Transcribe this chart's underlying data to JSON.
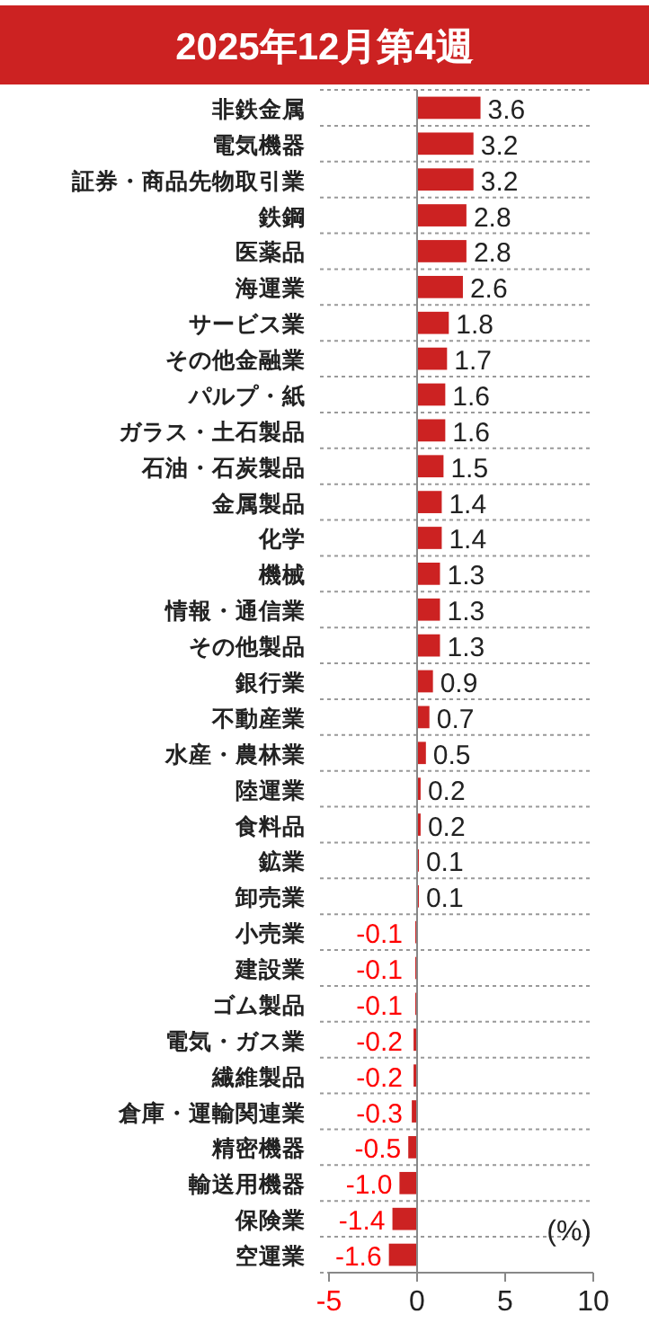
{
  "chart_data": {
    "type": "bar",
    "orientation": "horizontal",
    "title": "2025年12月第4週",
    "xlabel": "(%)",
    "categories": [
      "非鉄金属",
      "電気機器",
      "証券・商品先物取引業",
      "鉄鋼",
      "医薬品",
      "海運業",
      "サービス業",
      "その他金融業",
      "パルプ・紙",
      "ガラス・土石製品",
      "石油・石炭製品",
      "金属製品",
      "化学",
      "機械",
      "情報・通信業",
      "その他製品",
      "銀行業",
      "不動産業",
      "水産・農林業",
      "陸運業",
      "食料品",
      "鉱業",
      "卸売業",
      "小売業",
      "建設業",
      "ゴム製品",
      "電気・ガス業",
      "繊維製品",
      "倉庫・運輸関連業",
      "精密機器",
      "輸送用機器",
      "保険業",
      "空運業"
    ],
    "values": [
      3.6,
      3.2,
      3.2,
      2.8,
      2.8,
      2.6,
      1.8,
      1.7,
      1.6,
      1.6,
      1.5,
      1.4,
      1.4,
      1.3,
      1.3,
      1.3,
      0.9,
      0.7,
      0.5,
      0.2,
      0.2,
      0.1,
      0.1,
      -0.1,
      -0.1,
      -0.1,
      -0.2,
      -0.2,
      -0.3,
      -0.5,
      -1.0,
      -1.4,
      -1.6
    ],
    "value_labels": [
      "3.6",
      "3.2",
      "3.2",
      "2.8",
      "2.8",
      "2.6",
      "1.8",
      "1.7",
      "1.6",
      "1.6",
      "1.5",
      "1.4",
      "1.4",
      "1.3",
      "1.3",
      "1.3",
      "0.9",
      "0.7",
      "0.5",
      "0.2",
      "0.2",
      "0.1",
      "0.1",
      "-0.1",
      "-0.1",
      "-0.1",
      "-0.2",
      "-0.2",
      "-0.3",
      "-0.5",
      "-1.0",
      "-1.4",
      "-1.6"
    ],
    "color": "#cc2222",
    "xlim": [
      -5,
      10
    ],
    "xticks": [
      -5,
      0,
      5,
      10
    ],
    "grid": "y"
  }
}
